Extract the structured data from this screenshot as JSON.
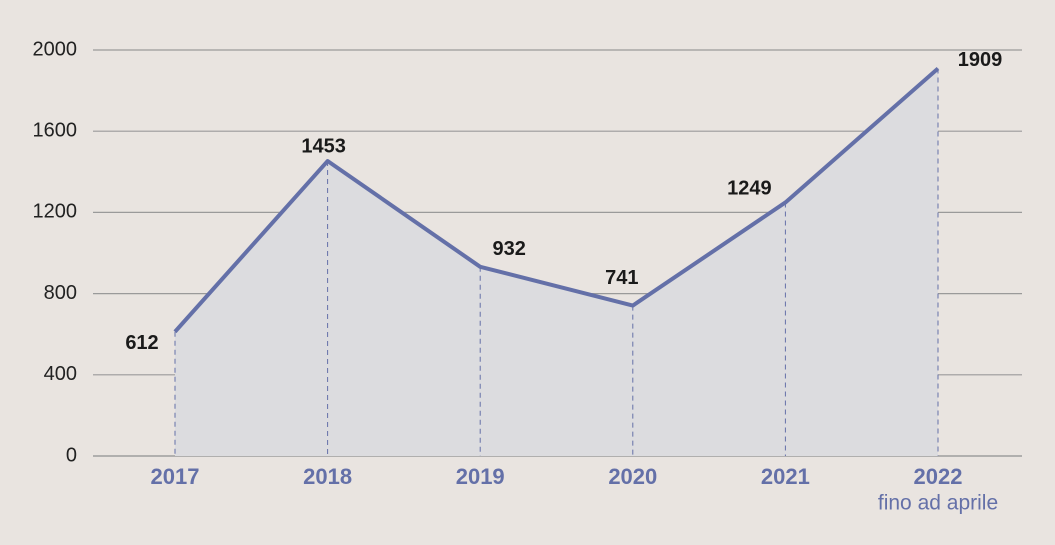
{
  "chart_data": {
    "type": "line",
    "categories": [
      "2017",
      "2018",
      "2019",
      "2020",
      "2021",
      "2022"
    ],
    "values": [
      612,
      1453,
      932,
      741,
      1249,
      1909
    ],
    "color": "#6470a8",
    "area_color": "#dcdcdf",
    "annotation": "fino ad aprile",
    "ylim": [
      0,
      2000
    ],
    "yticks": [
      0,
      400,
      800,
      1200,
      1600,
      2000
    ],
    "grid": true
  }
}
